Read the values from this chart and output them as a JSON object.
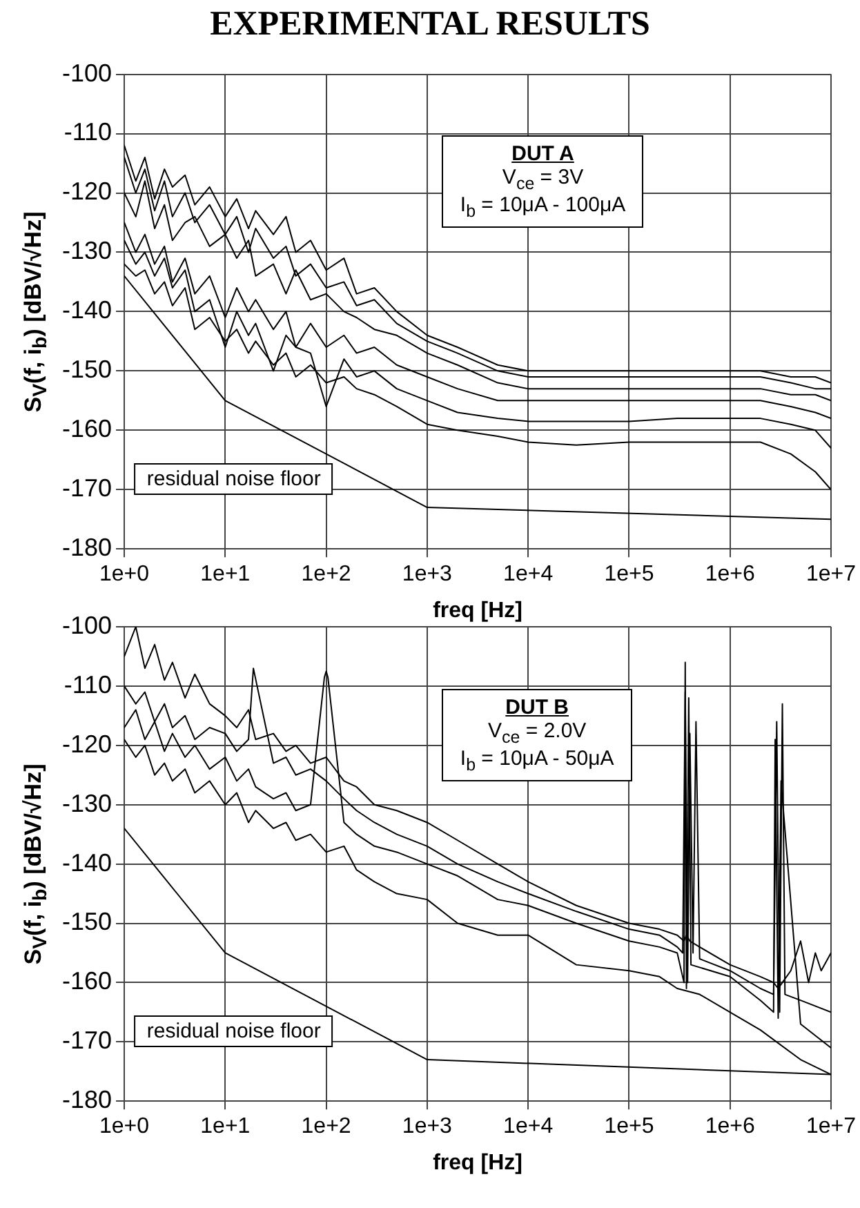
{
  "chart_data": [
    {
      "type": "line",
      "title": "EXPERIMENTAL RESULTS",
      "xlabel": "freq [Hz]",
      "ylabel": "S$_{V}$(f, i$_{b}$) [dBV/√Hz]",
      "log": "x",
      "grid": true,
      "legend": false,
      "marker": "none",
      "line_style": "solid",
      "xlim": [
        1,
        10000000
      ],
      "ylim": [
        -180,
        -100
      ],
      "xticks": [
        {
          "value": 1,
          "label": "1e+0"
        },
        {
          "value": 10,
          "label": "1e+1"
        },
        {
          "value": 100,
          "label": "1e+2"
        },
        {
          "value": 1000,
          "label": "1e+3"
        },
        {
          "value": 10000,
          "label": "1e+4"
        },
        {
          "value": 100000,
          "label": "1e+5"
        },
        {
          "value": 1000000,
          "label": "1e+6"
        },
        {
          "value": 10000000,
          "label": "1e+7"
        }
      ],
      "yticks": [
        -180,
        -170,
        -160,
        -150,
        -140,
        -130,
        -120,
        -110,
        -100
      ],
      "annotations": [
        "residual noise floor",
        "DUT A",
        "V$_{ce}$ = 3V",
        "I$_{b}$ = 10μA - 100μA"
      ],
      "series": [
        {
          "color": "#000000",
          "x": [
            1,
            1.3,
            1.6,
            2,
            2.5,
            3,
            4,
            5,
            7,
            10,
            13,
            17,
            20,
            30,
            40,
            50,
            70,
            100,
            150,
            200,
            300,
            500,
            1000,
            2000,
            5000,
            10000,
            30000,
            100000,
            300000,
            1000000,
            2000000,
            4000000,
            7000000,
            10000000
          ],
          "values": [
            -112,
            -118,
            -114,
            -121,
            -116,
            -119,
            -117,
            -122,
            -119,
            -124,
            -121,
            -126,
            -123,
            -127,
            -124,
            -130,
            -128,
            -133,
            -131,
            -137,
            -136,
            -140,
            -144,
            -146,
            -149,
            -150,
            -150,
            -150,
            -150,
            -150,
            -150,
            -151,
            -151,
            -152
          ]
        },
        {
          "color": "#000000",
          "x": [
            1,
            1.3,
            1.6,
            2,
            2.5,
            3,
            4,
            5,
            7,
            10,
            13,
            17,
            20,
            30,
            40,
            50,
            70,
            100,
            150,
            200,
            300,
            500,
            1000,
            2000,
            5000,
            10000,
            30000,
            100000,
            300000,
            1000000,
            2000000,
            4000000,
            7000000,
            10000000
          ],
          "values": [
            -114,
            -120,
            -116,
            -123,
            -118,
            -124,
            -120,
            -125,
            -122,
            -127,
            -124,
            -130,
            -126,
            -131,
            -129,
            -134,
            -132,
            -136,
            -135,
            -139,
            -138,
            -142,
            -145,
            -147,
            -150,
            -151,
            -151,
            -151,
            -151,
            -151,
            -151,
            -152,
            -153,
            -153
          ]
        },
        {
          "color": "#000000",
          "x": [
            1,
            1.3,
            1.6,
            2,
            2.5,
            3,
            4,
            5,
            7,
            10,
            13,
            17,
            20,
            30,
            40,
            50,
            70,
            100,
            150,
            200,
            300,
            500,
            1000,
            2000,
            5000,
            10000,
            30000,
            100000,
            300000,
            1000000,
            2000000,
            4000000,
            7000000,
            10000000
          ],
          "values": [
            -120,
            -124,
            -118,
            -126,
            -122,
            -128,
            -125,
            -124,
            -129,
            -127,
            -131,
            -128,
            -134,
            -132,
            -137,
            -133,
            -138,
            -137,
            -140,
            -141,
            -143,
            -144,
            -147,
            -149,
            -152,
            -153,
            -153,
            -153,
            -153,
            -153,
            -153,
            -154,
            -154,
            -155
          ]
        },
        {
          "color": "#000000",
          "x": [
            1,
            1.3,
            1.6,
            2,
            2.5,
            3,
            4,
            5,
            7,
            10,
            13,
            17,
            20,
            30,
            40,
            50,
            70,
            100,
            150,
            200,
            300,
            500,
            1000,
            2000,
            5000,
            10000,
            30000,
            100000,
            300000,
            1000000,
            2000000,
            4000000,
            7000000,
            10000000
          ],
          "values": [
            -125,
            -130,
            -127,
            -132,
            -129,
            -135,
            -131,
            -137,
            -134,
            -141,
            -136,
            -140,
            -138,
            -143,
            -140,
            -146,
            -142,
            -146,
            -144,
            -147,
            -146,
            -149,
            -151,
            -153,
            -155,
            -155,
            -155,
            -155,
            -155,
            -155,
            -155,
            -156,
            -157,
            -158
          ]
        },
        {
          "color": "#000000",
          "x": [
            1,
            1.3,
            1.6,
            2,
            2.5,
            3,
            4,
            5,
            7,
            10,
            13,
            17,
            20,
            30,
            40,
            50,
            70,
            100,
            150,
            200,
            300,
            500,
            1000,
            2000,
            5000,
            10000,
            30000,
            100000,
            300000,
            1000000,
            2000000,
            4000000,
            7000000,
            10000000
          ],
          "values": [
            -128,
            -132,
            -130,
            -134,
            -131,
            -136,
            -133,
            -140,
            -138,
            -146,
            -140,
            -144,
            -142,
            -150,
            -144,
            -146,
            -147,
            -156,
            -148,
            -151,
            -150,
            -153,
            -155,
            -157,
            -158,
            -158.5,
            -158.5,
            -158.5,
            -158,
            -158,
            -158,
            -159,
            -160,
            -163
          ]
        },
        {
          "color": "#000000",
          "x": [
            1,
            1.3,
            1.6,
            2,
            2.5,
            3,
            4,
            5,
            7,
            10,
            13,
            17,
            20,
            30,
            40,
            50,
            70,
            100,
            150,
            200,
            300,
            500,
            1000,
            2000,
            5000,
            10000,
            30000,
            100000,
            300000,
            1000000,
            2000000,
            4000000,
            7000000,
            10000000
          ],
          "values": [
            -132,
            -134,
            -133,
            -137,
            -135,
            -139,
            -136,
            -143,
            -141,
            -145,
            -143,
            -147,
            -145,
            -149,
            -147,
            -151,
            -149,
            -152,
            -151,
            -153,
            -154,
            -156,
            -159,
            -160,
            -161,
            -162,
            -162.5,
            -162,
            -162,
            -162,
            -162,
            -164,
            -167,
            -170
          ]
        },
        {
          "color": "#000000",
          "x": [
            1,
            10,
            1000,
            10000000
          ],
          "values": [
            -134,
            -155,
            -173,
            -175
          ]
        }
      ]
    },
    {
      "type": "line",
      "xlabel": "freq [Hz]",
      "ylabel": "S$_{V}$(f, i$_{b}$) [dBV/√Hz]",
      "log": "x",
      "grid": true,
      "legend": false,
      "marker": "none",
      "line_style": "solid",
      "xlim": [
        1,
        10000000
      ],
      "ylim": [
        -180,
        -100
      ],
      "xticks": [
        {
          "value": 1,
          "label": "1e+0"
        },
        {
          "value": 10,
          "label": "1e+1"
        },
        {
          "value": 100,
          "label": "1e+2"
        },
        {
          "value": 1000,
          "label": "1e+3"
        },
        {
          "value": 10000,
          "label": "1e+4"
        },
        {
          "value": 100000,
          "label": "1e+5"
        },
        {
          "value": 1000000,
          "label": "1e+6"
        },
        {
          "value": 10000000,
          "label": "1e+7"
        }
      ],
      "yticks": [
        -180,
        -170,
        -160,
        -150,
        -140,
        -130,
        -120,
        -110,
        -100
      ],
      "annotations": [
        "residual noise floor",
        "DUT B",
        "V$_{ce}$ = 2.0V",
        "I$_{b}$ = 10μA - 50μA"
      ],
      "series": [
        {
          "color": "#000000",
          "x": [
            1,
            1.3,
            1.6,
            2,
            2.5,
            3,
            4,
            5,
            7,
            10,
            13,
            17,
            20,
            30,
            40,
            50,
            70,
            100,
            150,
            200,
            300,
            500,
            1000,
            2000,
            5000,
            10000,
            30000,
            100000,
            200000,
            300000,
            350000,
            370000,
            400000,
            500000,
            1000000,
            2000000,
            2700000,
            3000000,
            3300000,
            4000000,
            5000000,
            6000000,
            7000000,
            8000000,
            10000000
          ],
          "values": [
            -105,
            -100,
            -107,
            -103,
            -109,
            -106,
            -112,
            -108,
            -113,
            -115,
            -117,
            -114,
            -119,
            -118,
            -121,
            -120,
            -123,
            -122,
            -126,
            -127,
            -130,
            -131,
            -133,
            -136,
            -140,
            -143,
            -147,
            -150,
            -151,
            -152,
            -153,
            -152,
            -153,
            -154,
            -157,
            -159,
            -160,
            -161,
            -160,
            -158,
            -153,
            -160,
            -155,
            -158,
            -155
          ]
        },
        {
          "color": "#000000",
          "x": [
            1,
            1.3,
            1.6,
            2,
            2.5,
            3,
            4,
            5,
            7,
            10,
            13,
            17,
            19,
            30,
            40,
            50,
            70,
            100,
            150,
            200,
            300,
            500,
            1000,
            2000,
            5000,
            10000,
            30000,
            100000,
            200000,
            300000,
            340000,
            360000,
            380000,
            400000,
            430000,
            460000,
            500000,
            1000000,
            2000000,
            2700000,
            2900000,
            3100000,
            3300000,
            3500000,
            5000000,
            10000000
          ],
          "values": [
            -110,
            -113,
            -111,
            -116,
            -113,
            -117,
            -115,
            -119,
            -117,
            -118,
            -121,
            -119,
            -107,
            -123,
            -122,
            -125,
            -124,
            -126,
            -129,
            -131,
            -133,
            -135,
            -137,
            -140,
            -143,
            -145,
            -148,
            -151,
            -152,
            -154,
            -155,
            -111,
            -160,
            -118,
            -155,
            -116,
            -156,
            -158,
            -161,
            -162,
            -116,
            -165,
            -113,
            -162,
            -163,
            -165
          ]
        },
        {
          "color": "#000000",
          "x": [
            1,
            1.3,
            1.6,
            2,
            2.5,
            3,
            4,
            5,
            7,
            10,
            13,
            17,
            20,
            30,
            40,
            50,
            70,
            96,
            100,
            104,
            150,
            200,
            300,
            500,
            1000,
            2000,
            5000,
            10000,
            30000,
            100000,
            200000,
            300000,
            350000,
            360000,
            370000,
            390000,
            410000,
            1000000,
            2000000,
            2700000,
            2800000,
            3000000,
            3200000,
            5000000,
            10000000
          ],
          "values": [
            -117,
            -114,
            -119,
            -116,
            -121,
            -118,
            -122,
            -120,
            -124,
            -122,
            -126,
            -124,
            -127,
            -129,
            -128,
            -131,
            -130,
            -108.5,
            -107.5,
            -108.5,
            -133,
            -135,
            -137,
            -138,
            -140,
            -142,
            -146,
            -147,
            -150,
            -153,
            -154,
            -155,
            -160,
            -106,
            -161,
            -112,
            -157,
            -159,
            -163,
            -165,
            -119,
            -166,
            -126,
            -167,
            -171
          ]
        },
        {
          "color": "#000000",
          "x": [
            1,
            1.3,
            1.6,
            2,
            2.5,
            3,
            4,
            5,
            7,
            10,
            13,
            17,
            20,
            30,
            40,
            50,
            70,
            100,
            150,
            200,
            300,
            500,
            1000,
            2000,
            5000,
            10000,
            30000,
            100000,
            200000,
            300000,
            500000,
            1000000,
            2000000,
            5000000,
            10000000
          ],
          "values": [
            -119,
            -122,
            -120,
            -125,
            -123,
            -126,
            -124,
            -128,
            -126,
            -130,
            -128,
            -133,
            -131,
            -134,
            -133,
            -136,
            -135,
            -138,
            -137,
            -141,
            -143,
            -145,
            -146,
            -150,
            -152,
            -152,
            -157,
            -158,
            -159,
            -161,
            -162,
            -165,
            -168,
            -173,
            -175.5
          ]
        },
        {
          "color": "#000000",
          "x": [
            1,
            10,
            1000,
            10000000
          ],
          "values": [
            -134,
            -155,
            -173,
            -175.5
          ]
        }
      ]
    }
  ]
}
